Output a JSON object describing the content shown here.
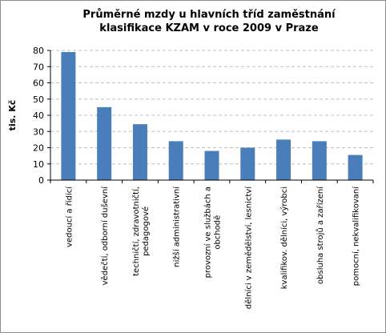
{
  "chart_data": {
    "type": "bar",
    "title_lines": [
      "Průměrné mzdy u hlavních tříd zaměstnání",
      "klasifikace KZAM v roce 2009 v Praze"
    ],
    "ylabel": "tis. Kč",
    "xlabel": "",
    "ylim": [
      0,
      80
    ],
    "yticks": [
      0,
      10,
      20,
      30,
      40,
      50,
      60,
      70,
      80
    ],
    "grid": true,
    "legend": "none",
    "bar_color": "#4a7ebb",
    "categories": [
      [
        "vedoucí a řídící"
      ],
      [
        "vědečtí, odborní duševní"
      ],
      [
        "techničtí, zdravotničtí,",
        "pedagogové"
      ],
      [
        "nižší  administrativní"
      ],
      [
        "provozní ve službách a",
        "obchodě"
      ],
      [
        "dělníci v zemědělství, lesnictví"
      ],
      [
        "kvalifikov. dělníci, výrobci"
      ],
      [
        "obsluha strojů a  zařízení"
      ],
      [
        "pomocní, nekvalifikovaní"
      ]
    ],
    "values": [
      79,
      45,
      34.5,
      24,
      18,
      20,
      25,
      24,
      15.5
    ]
  }
}
